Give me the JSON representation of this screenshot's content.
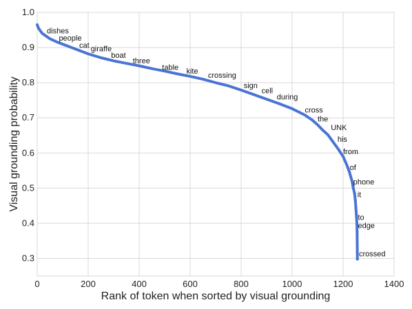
{
  "chart_data": {
    "type": "line",
    "title": "",
    "xlabel": "Rank of token when sorted by visual grounding",
    "ylabel": "Visual grounding probability",
    "xlim": [
      0,
      1400
    ],
    "ylim": [
      0.25,
      1.0
    ],
    "xticks": [
      0,
      200,
      400,
      600,
      800,
      1000,
      1200,
      1400
    ],
    "yticks": [
      0.3,
      0.4,
      0.5,
      0.6,
      0.7,
      0.8,
      0.9,
      1.0
    ],
    "grid": true,
    "line_color": "#4a74d4",
    "series": [
      {
        "x": [
          0,
          5,
          10,
          20,
          30,
          50,
          80,
          120,
          160,
          200,
          250,
          300,
          350,
          400,
          450,
          500,
          550,
          600,
          650,
          700,
          750,
          800,
          850,
          900,
          950,
          1000,
          1050,
          1080,
          1100,
          1120,
          1140,
          1160,
          1180,
          1200,
          1215,
          1225,
          1235,
          1240,
          1245,
          1248,
          1250,
          1252,
          1254,
          1255,
          1256
        ],
        "y": [
          0.965,
          0.955,
          0.95,
          0.94,
          0.935,
          0.925,
          0.915,
          0.904,
          0.893,
          0.882,
          0.871,
          0.862,
          0.855,
          0.848,
          0.84,
          0.833,
          0.825,
          0.818,
          0.81,
          0.8,
          0.791,
          0.779,
          0.766,
          0.753,
          0.74,
          0.726,
          0.708,
          0.693,
          0.68,
          0.665,
          0.652,
          0.632,
          0.612,
          0.59,
          0.565,
          0.545,
          0.52,
          0.5,
          0.485,
          0.465,
          0.445,
          0.425,
          0.4,
          0.375,
          0.298
        ]
      }
    ],
    "annotations": [
      {
        "text": "dishes",
        "x": 38,
        "y": 0.94
      },
      {
        "text": "people",
        "x": 85,
        "y": 0.92
      },
      {
        "text": "cat",
        "x": 165,
        "y": 0.899
      },
      {
        "text": "giraffe",
        "x": 210,
        "y": 0.889
      },
      {
        "text": "boat",
        "x": 290,
        "y": 0.871
      },
      {
        "text": "three",
        "x": 375,
        "y": 0.855
      },
      {
        "text": "table",
        "x": 490,
        "y": 0.836
      },
      {
        "text": "kite",
        "x": 585,
        "y": 0.826
      },
      {
        "text": "crossing",
        "x": 670,
        "y": 0.814
      },
      {
        "text": "sign",
        "x": 810,
        "y": 0.785
      },
      {
        "text": "cell",
        "x": 880,
        "y": 0.77
      },
      {
        "text": "during",
        "x": 940,
        "y": 0.752
      },
      {
        "text": "cross",
        "x": 1050,
        "y": 0.715
      },
      {
        "text": "the",
        "x": 1100,
        "y": 0.69
      },
      {
        "text": "UNK",
        "x": 1152,
        "y": 0.665
      },
      {
        "text": "his",
        "x": 1178,
        "y": 0.632
      },
      {
        "text": "from",
        "x": 1200,
        "y": 0.597
      },
      {
        "text": "of",
        "x": 1226,
        "y": 0.552
      },
      {
        "text": "phone",
        "x": 1240,
        "y": 0.51
      },
      {
        "text": "it",
        "x": 1256,
        "y": 0.474
      },
      {
        "text": "to",
        "x": 1258,
        "y": 0.41
      },
      {
        "text": "edge",
        "x": 1258,
        "y": 0.386
      },
      {
        "text": "crossed",
        "x": 1262,
        "y": 0.306
      }
    ]
  }
}
